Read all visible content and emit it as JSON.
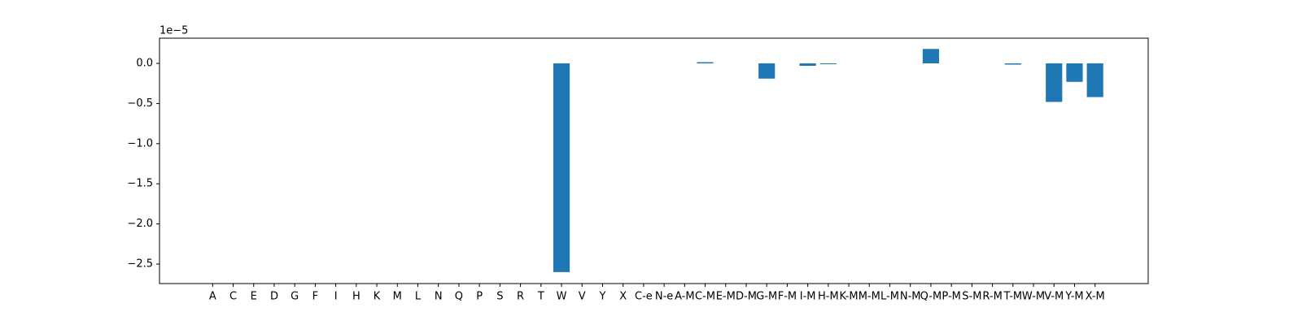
{
  "chart_data": {
    "type": "bar",
    "offset_text": "1e−5",
    "categories": [
      "A",
      "C",
      "E",
      "D",
      "G",
      "F",
      "I",
      "H",
      "K",
      "M",
      "L",
      "N",
      "Q",
      "P",
      "S",
      "R",
      "T",
      "W",
      "V",
      "Y",
      "X",
      "C-e",
      "N-e",
      "A-M",
      "C-M",
      "E-M",
      "D-M",
      "G-M",
      "F-M",
      "I-M",
      "H-M",
      "K-M",
      "M-M",
      "L-M",
      "N-M",
      "Q-M",
      "P-M",
      "S-M",
      "R-M",
      "T-M",
      "W-M",
      "V-M",
      "Y-M",
      "X-M"
    ],
    "values": [
      0,
      0,
      0,
      0,
      0,
      0,
      0,
      0,
      0,
      0,
      0,
      0,
      0,
      0,
      0,
      0,
      0,
      -2.6,
      0,
      0,
      0,
      0,
      0,
      0,
      0.015,
      0,
      0,
      -0.19,
      0,
      -0.03,
      -0.01,
      0,
      0,
      0,
      0,
      0.18,
      0,
      0,
      0,
      -0.015,
      0,
      -0.48,
      -0.23,
      -0.42
    ],
    "color": "#1f77b4",
    "xlim": [
      -2.59,
      45.59
    ],
    "ylim": [
      -2.743,
      0.314
    ],
    "yticks": [
      {
        "value": 0,
        "label": "0.0"
      },
      {
        "value": -0.5,
        "label": "−0.5"
      },
      {
        "value": -1.0,
        "label": "−1.0"
      },
      {
        "value": -1.5,
        "label": "−1.5"
      },
      {
        "value": -2.0,
        "label": "−2.0"
      },
      {
        "value": -2.5,
        "label": "−2.5"
      }
    ],
    "grid": false
  }
}
